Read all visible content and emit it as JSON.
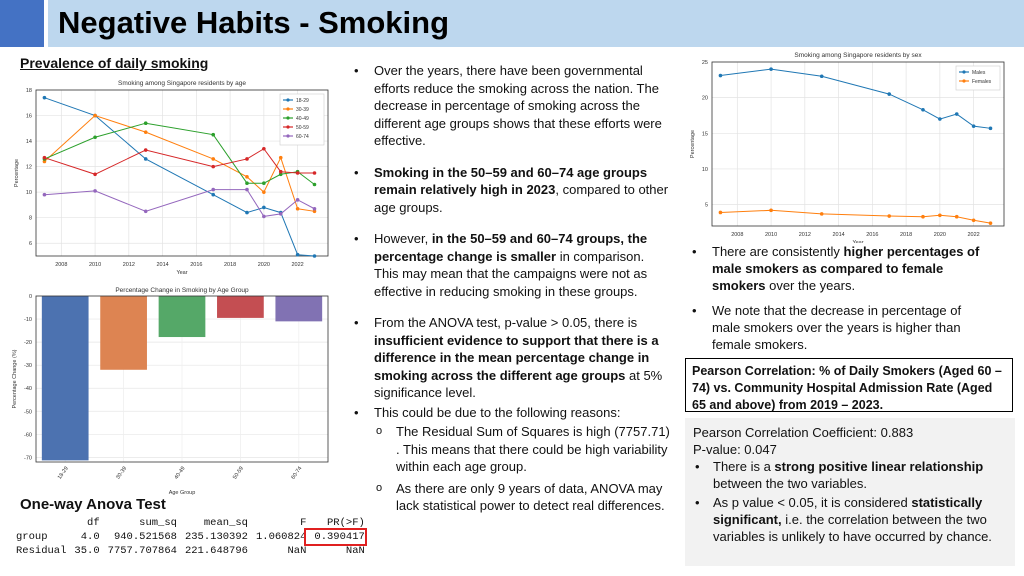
{
  "header": {
    "title": "Negative Habits - Smoking"
  },
  "left": {
    "section_title": "Prevalence of daily smoking",
    "age_chart_title": "Smoking among Singapore residents by age",
    "bar_chart_title": "Percentage Change in Smoking by Age Group",
    "anova_title": "One-way Anova Test"
  },
  "anova_table": {
    "headers": [
      "df",
      "sum_sq",
      "mean_sq",
      "F",
      "PR(>F)"
    ],
    "rows": [
      {
        "name": "group",
        "cells": [
          "4.0",
          "940.521568",
          "235.130392",
          "1.060824",
          "0.390417"
        ]
      },
      {
        "name": "Residual",
        "cells": [
          "35.0",
          "7757.707864",
          "221.648796",
          "NaN",
          "NaN"
        ]
      }
    ]
  },
  "middle": {
    "b1": "Over the years, there have been governmental efforts reduce the smoking across the nation. The decrease in percentage of smoking across the different age groups shows that these efforts were effective.",
    "b2_bold": "Smoking in the 50–59 and 60–74 age groups remain relatively high in 2023",
    "b2_rest": ", compared to other age groups.",
    "b3_pre": "However, ",
    "b3_bold": "in the 50–59 and 60–74 groups, the percentage change is smaller",
    "b3_rest": " in comparison. This may mean that the campaigns were not as effective in reducing smoking in these groups.",
    "b4_pre": "From the ANOVA test, p-value > 0.05, there is ",
    "b4_bold": "insufficient evidence to support that there is a difference in the mean percentage change in smoking across the different age groups",
    "b4_rest": " at 5% significance level.",
    "b5": "This could be due to the following reasons:",
    "s1": "The Residual Sum of Squares is high (7757.71) . This means that there could be high variability within each age group.",
    "s2": "As there are only 9 years of data, ANOVA may lack statistical power to detect real differences."
  },
  "right": {
    "sex_chart_title": "Smoking among Singapore residents by sex",
    "r1_pre": "There are consistently ",
    "r1_bold": "higher percentages of male smokers as compared to female smokers",
    "r1_rest": " over the years.",
    "r2": "We note that the decrease in percentage of male smokers over the years is higher than female smokers.",
    "pearson_box": "Pearson Correlation: % of Daily Smokers (Aged 60 – 74) vs. Community Hospital Admission Rate (Aged 65 and above) from 2019 – 2023.",
    "coef": "Pearson Correlation Coefficient: 0.883",
    "pval": "P-value: 0.047",
    "s1_pre": "There is a ",
    "s1_bold": "strong positive linear relationship",
    "s1_rest": " between the two variables.",
    "s2_pre": "As p value < 0.05, it is considered ",
    "s2_bold": "statistically significant,",
    "s2_rest": " i.e. the correlation between the two variables is unlikely to have occurred by chance."
  },
  "icons": {
    "bullet": "•",
    "sub_bullet": "o"
  },
  "chart_data": [
    {
      "type": "line",
      "title": "Smoking among Singapore residents by age",
      "xlabel": "Year",
      "ylabel": "Percentage",
      "xlim": [
        2006.5,
        2023.8
      ],
      "ylim": [
        5,
        18
      ],
      "xticks": [
        2008,
        2010,
        2012,
        2014,
        2016,
        2018,
        2020,
        2022
      ],
      "yticks": [
        6,
        8,
        10,
        12,
        14,
        16,
        18
      ],
      "grid": true,
      "legend": "top-right",
      "x": [
        2007,
        2010,
        2013,
        2017,
        2019,
        2020,
        2021,
        2022,
        2023
      ],
      "series": [
        {
          "name": "18-29",
          "color": "#1f77b4",
          "values": [
            17.4,
            16.0,
            12.6,
            9.8,
            8.4,
            8.8,
            8.4,
            5.1,
            5.0
          ]
        },
        {
          "name": "30-39",
          "color": "#ff7f0e",
          "values": [
            12.4,
            16.0,
            14.7,
            12.6,
            11.2,
            10.0,
            12.7,
            8.7,
            8.5
          ]
        },
        {
          "name": "40-49",
          "color": "#2ca02c",
          "values": [
            12.6,
            14.3,
            15.4,
            14.5,
            10.7,
            10.7,
            11.4,
            11.6,
            10.6
          ]
        },
        {
          "name": "50-59",
          "color": "#d62728",
          "values": [
            12.7,
            11.4,
            13.3,
            12.0,
            12.6,
            13.4,
            11.6,
            11.5,
            11.5
          ]
        },
        {
          "name": "60-74",
          "color": "#9467bd",
          "values": [
            9.8,
            10.1,
            8.5,
            10.2,
            10.2,
            8.1,
            8.3,
            9.4,
            8.7
          ]
        }
      ]
    },
    {
      "type": "bar",
      "title": "Percentage Change in Smoking by Age Group",
      "xlabel": "Age Group",
      "ylabel": "Percentage Change (%)",
      "categories": [
        "18-29",
        "30-39",
        "40-49",
        "50-59",
        "60-74"
      ],
      "colors": [
        "#4c72b0",
        "#dd8452",
        "#55a868",
        "#c44e52",
        "#8172b3"
      ],
      "values": [
        -71.3,
        -32.0,
        -17.8,
        -9.5,
        -11.0
      ],
      "ylim": [
        -72,
        0
      ],
      "yticks": [
        0,
        -10,
        -20,
        -30,
        -40,
        -50,
        -60,
        -70
      ],
      "grid": true
    },
    {
      "type": "line",
      "title": "Smoking among Singapore residents by sex",
      "xlabel": "Year",
      "ylabel": "Percentage",
      "xlim": [
        2006.5,
        2023.8
      ],
      "ylim": [
        2,
        25
      ],
      "xticks": [
        2008,
        2010,
        2012,
        2014,
        2016,
        2018,
        2020,
        2022
      ],
      "yticks": [
        5,
        10,
        15,
        20,
        25
      ],
      "grid": true,
      "legend": "top-right",
      "x": [
        2007,
        2010,
        2013,
        2017,
        2019,
        2020,
        2021,
        2022,
        2023
      ],
      "series": [
        {
          "name": "Males",
          "color": "#1f77b4",
          "values": [
            23.1,
            24.0,
            23.0,
            20.5,
            18.3,
            17.0,
            17.7,
            16.0,
            15.7
          ]
        },
        {
          "name": "Females",
          "color": "#ff7f0e",
          "values": [
            3.9,
            4.2,
            3.7,
            3.4,
            3.3,
            3.5,
            3.3,
            2.8,
            2.4
          ]
        }
      ]
    }
  ]
}
